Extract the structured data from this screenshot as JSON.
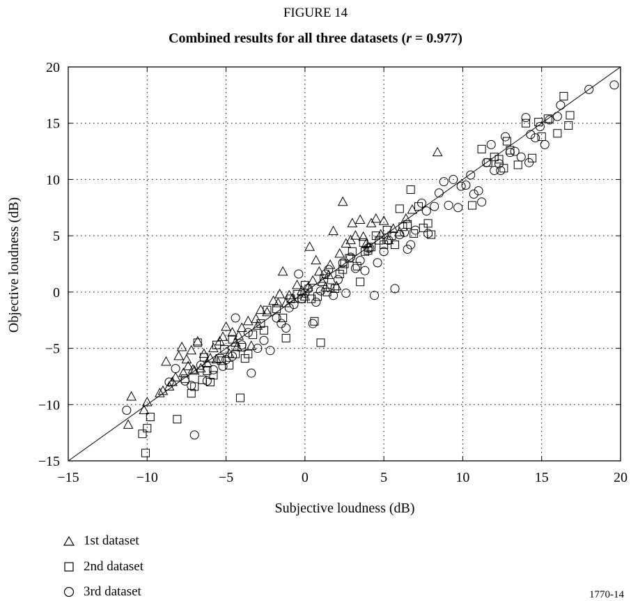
{
  "figure_label": "FIGURE 14",
  "title_prefix": "Combined results for all three datasets (",
  "title_r": "r",
  "title_suffix": " = 0.977)",
  "figure_code": "1770-14",
  "chart_data": {
    "type": "scatter",
    "title": "Combined results for all three datasets (r = 0.977)",
    "xlabel": "Subjective loudness (dB)",
    "ylabel": "Objective loudness (dB)",
    "xlim": [
      -15,
      20
    ],
    "ylim": [
      -15,
      20
    ],
    "xticks": [
      -15,
      -10,
      -5,
      0,
      5,
      10,
      15,
      20
    ],
    "yticks": [
      -15,
      -10,
      -5,
      0,
      5,
      10,
      15,
      20
    ],
    "x_tick_labels": [
      "−15",
      "−10",
      "−5",
      "0",
      "5",
      "10",
      "15",
      "20"
    ],
    "y_tick_labels": [
      "−15",
      "−10",
      "−5",
      "0",
      "5",
      "10",
      "15",
      "20"
    ],
    "grid": "dotted",
    "reference_line": [
      [
        -15,
        -15
      ],
      [
        20,
        20
      ]
    ],
    "legend_position": "bottom-left, below plot",
    "series": [
      {
        "name": "1st dataset",
        "marker": "triangle",
        "points": [
          [
            -11.0,
            -9.3
          ],
          [
            -11.2,
            -11.8
          ],
          [
            -10.2,
            -10.5
          ],
          [
            -10.0,
            -9.8
          ],
          [
            -9.2,
            -9.0
          ],
          [
            -9.0,
            -8.8
          ],
          [
            -8.8,
            -6.2
          ],
          [
            -8.6,
            -8.4
          ],
          [
            -8.4,
            -8.0
          ],
          [
            -8.2,
            -7.6
          ],
          [
            -8.0,
            -5.7
          ],
          [
            -7.8,
            -4.9
          ],
          [
            -7.7,
            -7.2
          ],
          [
            -7.5,
            -6.0
          ],
          [
            -7.4,
            -6.6
          ],
          [
            -7.2,
            -5.2
          ],
          [
            -7.1,
            -6.9
          ],
          [
            -7.0,
            -7.0
          ],
          [
            -6.8,
            -4.4
          ],
          [
            -6.6,
            -6.8
          ],
          [
            -6.4,
            -5.5
          ],
          [
            -6.2,
            -6.3
          ],
          [
            -6.0,
            -5.9
          ],
          [
            -5.8,
            -5.0
          ],
          [
            -5.6,
            -6.0
          ],
          [
            -5.4,
            -4.4
          ],
          [
            -5.2,
            -4.0
          ],
          [
            -5.0,
            -3.1
          ],
          [
            -4.8,
            -5.5
          ],
          [
            -4.6,
            -3.6
          ],
          [
            -4.4,
            -4.5
          ],
          [
            -4.2,
            -3.9
          ],
          [
            -4.0,
            -3.2
          ],
          [
            -3.6,
            -2.6
          ],
          [
            -3.4,
            -4.8
          ],
          [
            -3.0,
            -3.0
          ],
          [
            -2.8,
            -1.6
          ],
          [
            -2.4,
            -1.8
          ],
          [
            -2.0,
            -0.8
          ],
          [
            -1.6,
            -0.2
          ],
          [
            -1.4,
            1.8
          ],
          [
            -1.2,
            -1.0
          ],
          [
            -1.0,
            -0.3
          ],
          [
            -0.8,
            -0.6
          ],
          [
            -0.5,
            0.6
          ],
          [
            -0.2,
            0.1
          ],
          [
            0.2,
            0.4
          ],
          [
            0.3,
            4.0
          ],
          [
            0.5,
            1.0
          ],
          [
            0.7,
            2.8
          ],
          [
            0.9,
            1.8
          ],
          [
            1.1,
            0.9
          ],
          [
            1.3,
            0.4
          ],
          [
            1.5,
            1.5
          ],
          [
            1.6,
            2.4
          ],
          [
            1.8,
            5.4
          ],
          [
            2.0,
            0.5
          ],
          [
            2.2,
            3.4
          ],
          [
            2.4,
            8.0
          ],
          [
            2.6,
            4.3
          ],
          [
            2.9,
            4.6
          ],
          [
            3.0,
            6.1
          ],
          [
            3.2,
            5.0
          ],
          [
            3.5,
            6.4
          ],
          [
            3.7,
            4.9
          ],
          [
            3.9,
            4.3
          ],
          [
            4.2,
            6.1
          ],
          [
            4.5,
            6.5
          ],
          [
            4.8,
            5.1
          ],
          [
            5.0,
            6.3
          ],
          [
            5.3,
            4.6
          ],
          [
            5.6,
            5.6
          ],
          [
            6.0,
            5.3
          ],
          [
            6.4,
            6.5
          ],
          [
            6.8,
            7.3
          ],
          [
            8.4,
            12.4
          ],
          [
            -4.3,
            -4.9
          ],
          [
            -3.1,
            -2.4
          ],
          [
            -1.7,
            -1.0
          ],
          [
            0.0,
            -0.4
          ]
        ]
      },
      {
        "name": "2nd dataset",
        "marker": "square",
        "points": [
          [
            -10.1,
            -14.3
          ],
          [
            -10.3,
            -12.6
          ],
          [
            -10.0,
            -12.1
          ],
          [
            -9.8,
            -11.1
          ],
          [
            -8.1,
            -11.3
          ],
          [
            -7.2,
            -9.0
          ],
          [
            -7.0,
            -8.4
          ],
          [
            -6.8,
            -4.5
          ],
          [
            -6.5,
            -7.8
          ],
          [
            -6.2,
            -7.0
          ],
          [
            -6.0,
            -8.0
          ],
          [
            -5.8,
            -7.4
          ],
          [
            -5.6,
            -4.7
          ],
          [
            -5.4,
            -5.9
          ],
          [
            -5.1,
            -5.1
          ],
          [
            -4.8,
            -6.5
          ],
          [
            -4.6,
            -4.2
          ],
          [
            -4.4,
            -5.5
          ],
          [
            -4.1,
            -9.4
          ],
          [
            -4.0,
            -4.9
          ],
          [
            -3.8,
            -5.9
          ],
          [
            -3.6,
            -5.5
          ],
          [
            -3.3,
            -3.8
          ],
          [
            -2.8,
            -2.8
          ],
          [
            -2.6,
            -3.4
          ],
          [
            -2.4,
            -1.6
          ],
          [
            -1.8,
            -1.5
          ],
          [
            -1.4,
            -2.3
          ],
          [
            -1.2,
            -4.1
          ],
          [
            -0.9,
            -0.6
          ],
          [
            -0.5,
            -0.2
          ],
          [
            -0.2,
            -0.6
          ],
          [
            0.0,
            0.6
          ],
          [
            0.4,
            -0.6
          ],
          [
            0.6,
            -2.6
          ],
          [
            0.8,
            -0.4
          ],
          [
            1.0,
            -4.5
          ],
          [
            1.2,
            1.2
          ],
          [
            1.4,
            0.0
          ],
          [
            1.6,
            0.4
          ],
          [
            1.9,
            0.3
          ],
          [
            2.2,
            1.6
          ],
          [
            2.5,
            2.5
          ],
          [
            2.8,
            3.0
          ],
          [
            3.0,
            3.6
          ],
          [
            3.3,
            2.3
          ],
          [
            3.5,
            0.9
          ],
          [
            3.7,
            4.4
          ],
          [
            4.0,
            3.7
          ],
          [
            4.2,
            4.0
          ],
          [
            4.5,
            5.0
          ],
          [
            4.7,
            4.6
          ],
          [
            5.0,
            4.2
          ],
          [
            5.2,
            5.5
          ],
          [
            5.5,
            5.0
          ],
          [
            5.7,
            4.2
          ],
          [
            6.0,
            7.4
          ],
          [
            6.2,
            5.8
          ],
          [
            6.5,
            6.0
          ],
          [
            6.7,
            9.1
          ],
          [
            6.9,
            5.2
          ],
          [
            7.2,
            7.6
          ],
          [
            7.5,
            5.7
          ],
          [
            7.8,
            6.1
          ],
          [
            8.0,
            5.1
          ],
          [
            10.6,
            7.7
          ],
          [
            11.2,
            12.7
          ],
          [
            11.6,
            11.5
          ],
          [
            12.0,
            12.0
          ],
          [
            12.3,
            11.8
          ],
          [
            12.6,
            11.0
          ],
          [
            13.0,
            12.6
          ],
          [
            13.5,
            11.3
          ],
          [
            14.0,
            15.0
          ],
          [
            14.4,
            11.9
          ],
          [
            14.8,
            15.1
          ],
          [
            15.0,
            13.8
          ],
          [
            15.4,
            15.4
          ],
          [
            16.0,
            14.1
          ],
          [
            16.4,
            17.4
          ],
          [
            16.7,
            14.8
          ],
          [
            16.8,
            15.7
          ],
          [
            -7.6,
            -7.7
          ],
          [
            -6.4,
            -5.8
          ],
          [
            -5.3,
            -6.1
          ],
          [
            2.4,
            2.0
          ],
          [
            3.8,
            3.6
          ],
          [
            12.8,
            13.4
          ]
        ]
      },
      {
        "name": "3rd dataset",
        "marker": "circle",
        "points": [
          [
            -11.3,
            -10.5
          ],
          [
            -8.2,
            -6.8
          ],
          [
            -7.6,
            -7.9
          ],
          [
            -7.2,
            -8.3
          ],
          [
            -7.0,
            -12.7
          ],
          [
            -6.6,
            -6.5
          ],
          [
            -6.2,
            -7.9
          ],
          [
            -5.8,
            -6.9
          ],
          [
            -5.2,
            -6.6
          ],
          [
            -5.0,
            -6.0
          ],
          [
            -4.6,
            -5.7
          ],
          [
            -4.4,
            -2.3
          ],
          [
            -4.0,
            -4.7
          ],
          [
            -3.6,
            -3.6
          ],
          [
            -3.4,
            -7.2
          ],
          [
            -3.0,
            -5.0
          ],
          [
            -2.6,
            -4.3
          ],
          [
            -2.2,
            -5.2
          ],
          [
            -1.8,
            -2.3
          ],
          [
            -1.5,
            -2.8
          ],
          [
            -1.2,
            -3.2
          ],
          [
            -1.0,
            -1.4
          ],
          [
            -0.7,
            -1.1
          ],
          [
            -0.4,
            1.6
          ],
          [
            -0.2,
            -0.6
          ],
          [
            0.0,
            -0.1
          ],
          [
            0.2,
            0.3
          ],
          [
            0.5,
            -2.8
          ],
          [
            0.7,
            -0.9
          ],
          [
            1.0,
            0.1
          ],
          [
            1.3,
            1.6
          ],
          [
            1.5,
            2.0
          ],
          [
            1.8,
            -0.3
          ],
          [
            2.1,
            1.1
          ],
          [
            2.4,
            2.6
          ],
          [
            2.6,
            -0.1
          ],
          [
            2.9,
            3.1
          ],
          [
            3.2,
            2.1
          ],
          [
            3.5,
            2.8
          ],
          [
            3.8,
            1.9
          ],
          [
            4.1,
            3.9
          ],
          [
            4.4,
            -0.3
          ],
          [
            4.6,
            2.6
          ],
          [
            5.0,
            3.6
          ],
          [
            5.3,
            4.6
          ],
          [
            5.7,
            0.3
          ],
          [
            6.0,
            5.1
          ],
          [
            6.3,
            5.3
          ],
          [
            6.5,
            3.8
          ],
          [
            6.7,
            4.2
          ],
          [
            7.0,
            5.5
          ],
          [
            7.4,
            7.9
          ],
          [
            7.8,
            5.2
          ],
          [
            8.2,
            7.6
          ],
          [
            8.5,
            8.8
          ],
          [
            8.8,
            9.8
          ],
          [
            9.1,
            7.7
          ],
          [
            9.4,
            10.0
          ],
          [
            9.7,
            7.5
          ],
          [
            9.9,
            9.4
          ],
          [
            10.2,
            9.5
          ],
          [
            10.5,
            10.4
          ],
          [
            10.7,
            8.7
          ],
          [
            11.0,
            9.0
          ],
          [
            11.2,
            8.0
          ],
          [
            11.5,
            11.5
          ],
          [
            11.8,
            13.1
          ],
          [
            12.0,
            10.8
          ],
          [
            12.3,
            11.4
          ],
          [
            12.7,
            13.8
          ],
          [
            13.0,
            12.4
          ],
          [
            13.3,
            12.5
          ],
          [
            13.7,
            12.0
          ],
          [
            14.0,
            15.5
          ],
          [
            14.3,
            14.0
          ],
          [
            14.6,
            13.7
          ],
          [
            14.9,
            14.7
          ],
          [
            15.2,
            13.1
          ],
          [
            15.5,
            15.3
          ],
          [
            16.0,
            15.6
          ],
          [
            16.2,
            16.6
          ],
          [
            18.0,
            18.0
          ],
          [
            19.6,
            18.4
          ],
          [
            12.4,
            10.8
          ],
          [
            14.2,
            11.5
          ],
          [
            7.7,
            7.2
          ],
          [
            4.0,
            3.9
          ],
          [
            -8.6,
            -8.0
          ]
        ]
      }
    ]
  }
}
